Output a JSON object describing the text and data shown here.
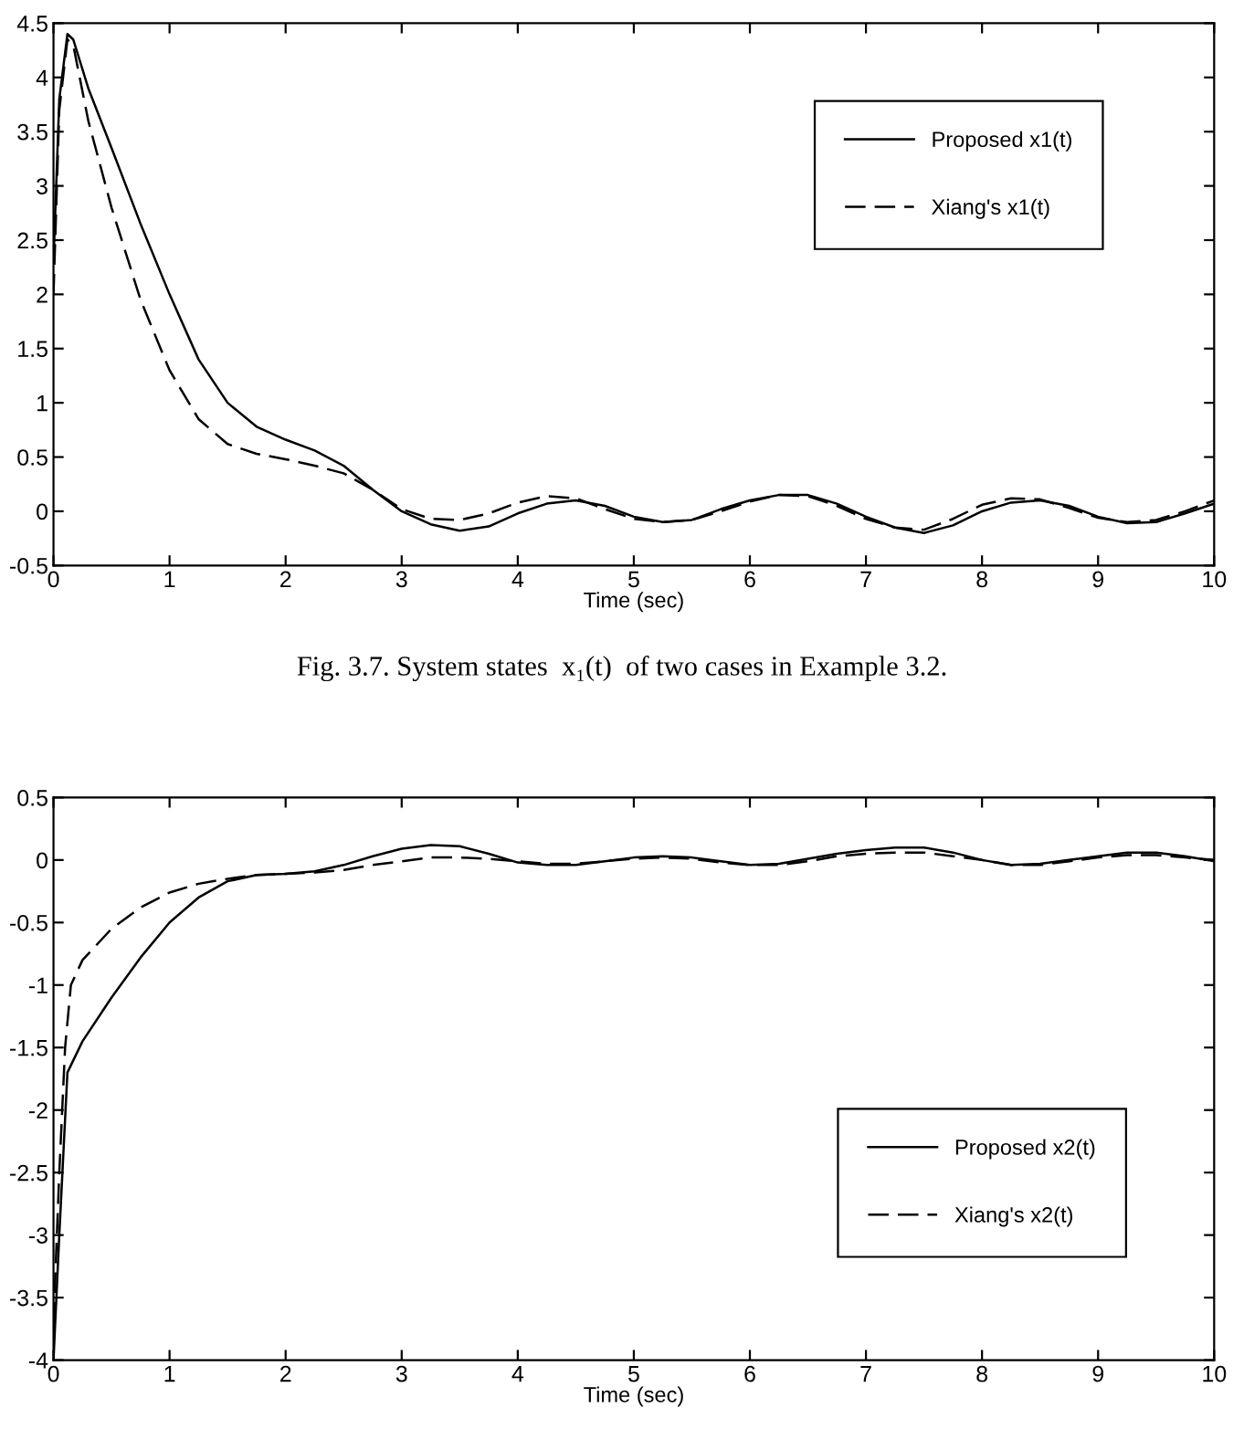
{
  "chart_data": [
    {
      "type": "line",
      "xlabel": "Time (sec)",
      "xlim": [
        0,
        10
      ],
      "xticks": [
        0,
        1,
        2,
        3,
        4,
        5,
        6,
        7,
        8,
        9,
        10
      ],
      "ylim": [
        -0.5,
        4.5
      ],
      "yticks": [
        -0.5,
        0,
        0.5,
        1,
        1.5,
        2,
        2.5,
        3,
        3.5,
        4,
        4.5
      ],
      "grid": false,
      "legend": "top right",
      "annotations": [
        "Fig. 3.7. System states  x₁(t)  of two cases in Example 3.2."
      ],
      "series": [
        {
          "name": "Proposed x1(t)",
          "color": "#000000",
          "line_style": "solid",
          "x": [
            0,
            0.05,
            0.12,
            0.17,
            0.3,
            0.5,
            0.75,
            1,
            1.25,
            1.5,
            1.75,
            2,
            2.25,
            2.5,
            2.75,
            3,
            3.25,
            3.5,
            3.75,
            4,
            4.25,
            4.5,
            4.75,
            5,
            5.25,
            5.5,
            5.75,
            6,
            6.25,
            6.5,
            6.75,
            7,
            7.25,
            7.5,
            7.75,
            8,
            8.25,
            8.5,
            8.75,
            9,
            9.25,
            9.5,
            9.75,
            10
          ],
          "values": [
            2.3,
            3.8,
            4.4,
            4.35,
            3.9,
            3.35,
            2.65,
            2.0,
            1.4,
            1.0,
            0.78,
            0.66,
            0.56,
            0.42,
            0.2,
            0.0,
            -0.12,
            -0.18,
            -0.14,
            -0.02,
            0.07,
            0.1,
            0.05,
            -0.05,
            -0.1,
            -0.08,
            0.02,
            0.1,
            0.15,
            0.15,
            0.07,
            -0.05,
            -0.15,
            -0.2,
            -0.13,
            0.0,
            0.08,
            0.1,
            0.05,
            -0.05,
            -0.11,
            -0.1,
            -0.02,
            0.07
          ]
        },
        {
          "name": "Xiang's x1(t)",
          "color": "#000000",
          "line_style": "dashed",
          "x": [
            0,
            0.05,
            0.12,
            0.17,
            0.3,
            0.5,
            0.75,
            1,
            1.25,
            1.5,
            1.75,
            2,
            2.25,
            2.5,
            2.75,
            3,
            3.25,
            3.5,
            3.75,
            4,
            4.25,
            4.5,
            4.75,
            5,
            5.25,
            5.5,
            5.75,
            6,
            6.25,
            6.5,
            6.75,
            7,
            7.25,
            7.5,
            7.75,
            8,
            8.25,
            8.5,
            8.75,
            9,
            9.25,
            9.5,
            9.75,
            10
          ],
          "values": [
            2.0,
            3.7,
            4.35,
            4.3,
            3.6,
            2.8,
            1.95,
            1.3,
            0.85,
            0.62,
            0.53,
            0.48,
            0.42,
            0.35,
            0.2,
            0.02,
            -0.07,
            -0.08,
            -0.02,
            0.08,
            0.14,
            0.12,
            0.02,
            -0.07,
            -0.1,
            -0.08,
            0.0,
            0.09,
            0.15,
            0.14,
            0.05,
            -0.07,
            -0.15,
            -0.17,
            -0.07,
            0.06,
            0.12,
            0.11,
            0.03,
            -0.06,
            -0.1,
            -0.08,
            0.0,
            0.1
          ]
        }
      ]
    },
    {
      "type": "line",
      "xlabel": "Time (sec)",
      "xlim": [
        0,
        10
      ],
      "xticks": [
        0,
        1,
        2,
        3,
        4,
        5,
        6,
        7,
        8,
        9,
        10
      ],
      "ylim": [
        -4,
        0.5
      ],
      "yticks": [
        -4,
        -3.5,
        -3,
        -2.5,
        -2,
        -1.5,
        -1,
        -0.5,
        0,
        0.5
      ],
      "grid": false,
      "legend": "bottom right",
      "series": [
        {
          "name": "Proposed x2(t)",
          "color": "#000000",
          "line_style": "solid",
          "x": [
            0,
            0.05,
            0.12,
            0.25,
            0.5,
            0.75,
            1,
            1.25,
            1.5,
            1.75,
            2,
            2.25,
            2.5,
            2.75,
            3,
            3.25,
            3.5,
            3.75,
            4,
            4.25,
            4.5,
            4.75,
            5,
            5.25,
            5.5,
            5.75,
            6,
            6.25,
            6.5,
            6.75,
            7,
            7.25,
            7.5,
            7.75,
            8,
            8.25,
            8.5,
            8.75,
            9,
            9.25,
            9.5,
            9.75,
            10
          ],
          "values": [
            -4,
            -3.0,
            -1.7,
            -1.45,
            -1.1,
            -0.78,
            -0.5,
            -0.3,
            -0.17,
            -0.12,
            -0.11,
            -0.09,
            -0.04,
            0.03,
            0.09,
            0.12,
            0.11,
            0.05,
            -0.02,
            -0.04,
            -0.04,
            -0.01,
            0.02,
            0.03,
            0.02,
            -0.01,
            -0.04,
            -0.03,
            0.01,
            0.05,
            0.08,
            0.1,
            0.1,
            0.06,
            0.0,
            -0.04,
            -0.03,
            0.0,
            0.03,
            0.06,
            0.06,
            0.03,
            -0.01
          ]
        },
        {
          "name": "Xiang's x2(t)",
          "color": "#000000",
          "line_style": "dashed",
          "x": [
            0,
            0.05,
            0.1,
            0.15,
            0.25,
            0.5,
            0.75,
            1,
            1.25,
            1.5,
            1.75,
            2,
            2.25,
            2.5,
            2.75,
            3,
            3.25,
            3.5,
            3.75,
            4,
            4.25,
            4.5,
            4.75,
            5,
            5.25,
            5.5,
            5.75,
            6,
            6.25,
            6.5,
            6.75,
            7,
            7.25,
            7.5,
            7.75,
            8,
            8.25,
            8.5,
            8.75,
            9,
            9.25,
            9.5,
            9.75,
            10
          ],
          "values": [
            -3.7,
            -2.5,
            -1.5,
            -1.0,
            -0.8,
            -0.55,
            -0.38,
            -0.26,
            -0.19,
            -0.15,
            -0.12,
            -0.11,
            -0.1,
            -0.08,
            -0.04,
            -0.01,
            0.02,
            0.02,
            0.01,
            -0.01,
            -0.03,
            -0.03,
            -0.01,
            0.01,
            0.02,
            0.01,
            -0.02,
            -0.04,
            -0.04,
            -0.01,
            0.03,
            0.05,
            0.06,
            0.06,
            0.03,
            0.0,
            -0.04,
            -0.04,
            -0.01,
            0.02,
            0.04,
            0.04,
            0.02,
            0.0
          ]
        }
      ]
    }
  ]
}
